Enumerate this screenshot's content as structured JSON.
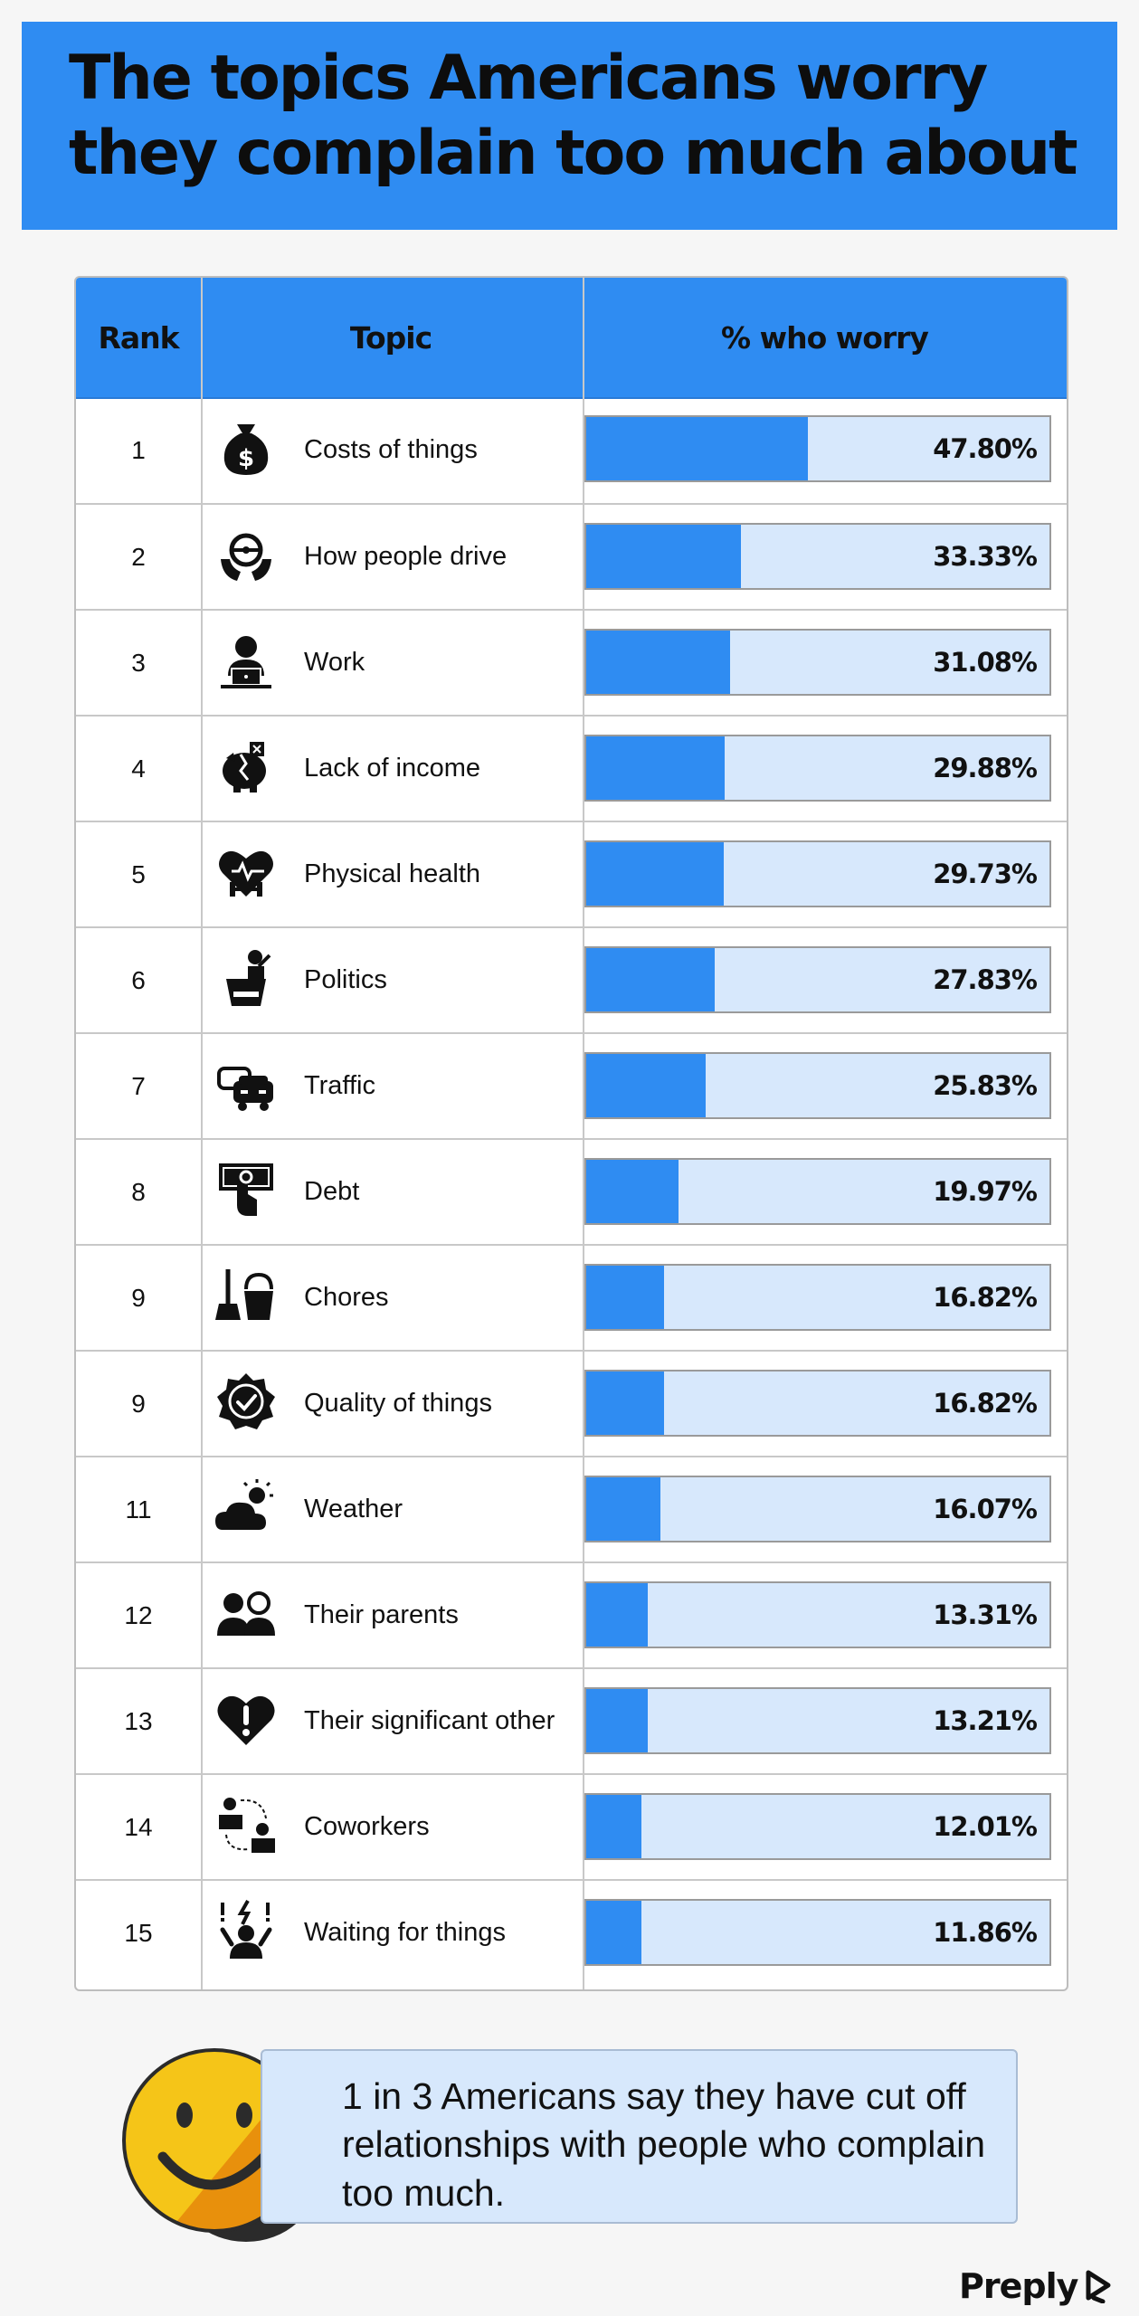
{
  "title": "The topics Americans worry they complain too much about",
  "colors": {
    "accent": "#2f8cf2",
    "track": "#d7e8fc",
    "smiley_yellow": "#f5c518",
    "smiley_orange": "#e8900c"
  },
  "table": {
    "headers": {
      "rank": "Rank",
      "topic": "Topic",
      "value": "% who worry"
    }
  },
  "chart_data": {
    "type": "bar",
    "orientation": "horizontal",
    "xlim": [
      0,
      100
    ],
    "rows": [
      {
        "rank": "1",
        "topic": "Costs of things",
        "value": 47.8,
        "label": "47.80%",
        "icon": "money-bag-icon"
      },
      {
        "rank": "2",
        "topic": "How people drive",
        "value": 33.33,
        "label": "33.33%",
        "icon": "steering-wheel-icon"
      },
      {
        "rank": "3",
        "topic": "Work",
        "value": 31.08,
        "label": "31.08%",
        "icon": "worker-laptop-icon"
      },
      {
        "rank": "4",
        "topic": "Lack of income",
        "value": 29.88,
        "label": "29.88%",
        "icon": "broken-piggy-bank-icon"
      },
      {
        "rank": "5",
        "topic": "Physical health",
        "value": 29.73,
        "label": "29.73%",
        "icon": "heart-dumbbell-icon"
      },
      {
        "rank": "6",
        "topic": "Politics",
        "value": 27.83,
        "label": "27.83%",
        "icon": "podium-speaker-icon"
      },
      {
        "rank": "7",
        "topic": "Traffic",
        "value": 25.83,
        "label": "25.83%",
        "icon": "cars-icon"
      },
      {
        "rank": "8",
        "topic": "Debt",
        "value": 19.97,
        "label": "19.97%",
        "icon": "hand-banknote-icon"
      },
      {
        "rank": "9",
        "topic": "Chores",
        "value": 16.82,
        "label": "16.82%",
        "icon": "broom-bucket-icon"
      },
      {
        "rank": "9",
        "topic": "Quality of things",
        "value": 16.82,
        "label": "16.82%",
        "icon": "quality-badge-icon"
      },
      {
        "rank": "11",
        "topic": "Weather",
        "value": 16.07,
        "label": "16.07%",
        "icon": "sun-cloud-icon"
      },
      {
        "rank": "12",
        "topic": "Their parents",
        "value": 13.31,
        "label": "13.31%",
        "icon": "parents-icon"
      },
      {
        "rank": "13",
        "topic": "Their significant other",
        "value": 13.21,
        "label": "13.21%",
        "icon": "heart-alert-icon"
      },
      {
        "rank": "14",
        "topic": "Coworkers",
        "value": 12.01,
        "label": "12.01%",
        "icon": "coworkers-icon"
      },
      {
        "rank": "15",
        "topic": "Waiting for things",
        "value": 11.86,
        "label": "11.86%",
        "icon": "impatient-person-icon"
      }
    ]
  },
  "callout": {
    "text": "1 in 3 Americans say they have cut off relationships with people who complain too much.",
    "icon": "smiley-face-icon"
  },
  "brand": {
    "name": "Preply",
    "icon": "preply-logo-icon"
  }
}
